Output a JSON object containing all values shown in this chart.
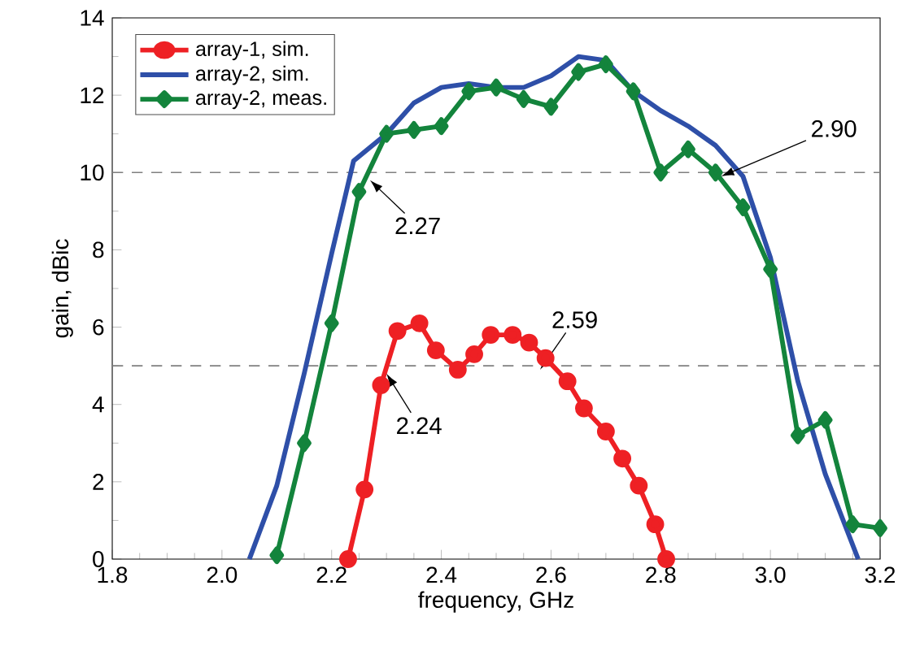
{
  "chart_data": {
    "type": "line",
    "xlabel": "frequency, GHz",
    "ylabel": "gain, dBic",
    "xlim": [
      1.8,
      3.2
    ],
    "xticks": [
      1.8,
      {
        "value": 2,
        "label": "2.0"
      },
      2.2,
      2.4,
      2.6,
      2.8,
      {
        "value": 3,
        "label": "3.0"
      },
      3.2
    ],
    "ylim": [
      0,
      14
    ],
    "yticks": [
      0,
      2,
      4,
      6,
      8,
      10,
      12,
      14
    ],
    "grid": false,
    "legend": "top left",
    "line_style": "solid",
    "series": [
      {
        "name": "array-1, sim.",
        "color": "#ee2024",
        "marker": "circle",
        "x": [
          2.23,
          2.26,
          2.29,
          2.32,
          2.36,
          2.39,
          2.43,
          2.46,
          2.49,
          2.53,
          2.56,
          2.59,
          2.63,
          2.66,
          2.7,
          2.73,
          2.76,
          2.79,
          2.81
        ],
        "values": [
          0,
          1.8,
          4.5,
          5.9,
          6.1,
          5.4,
          4.9,
          5.3,
          5.8,
          5.8,
          5.6,
          5.2,
          4.6,
          3.9,
          3.3,
          2.6,
          1.9,
          0.9,
          0
        ]
      },
      {
        "name": "array-2, sim.",
        "color": "#2e4fa8",
        "marker": "none",
        "x": [
          2.05,
          2.1,
          2.15,
          2.2,
          2.24,
          2.3,
          2.35,
          2.4,
          2.45,
          2.5,
          2.55,
          2.6,
          2.65,
          2.7,
          2.75,
          2.8,
          2.85,
          2.9,
          2.95,
          3.0,
          3.05,
          3.1,
          3.16
        ],
        "values": [
          0,
          1.9,
          4.8,
          7.9,
          10.3,
          11.0,
          11.8,
          12.2,
          12.3,
          12.2,
          12.2,
          12.5,
          13.0,
          12.9,
          12.1,
          11.6,
          11.2,
          10.7,
          9.9,
          7.8,
          4.6,
          2.2,
          0
        ]
      },
      {
        "name": "array-2, meas.",
        "color": "#13843c",
        "marker": "diamond",
        "x": [
          2.1,
          2.15,
          2.2,
          2.25,
          2.3,
          2.35,
          2.4,
          2.45,
          2.5,
          2.55,
          2.6,
          2.65,
          2.7,
          2.75,
          2.8,
          2.85,
          2.9,
          2.95,
          3.0,
          3.05,
          3.1,
          3.15,
          3.2
        ],
        "values": [
          0.1,
          3.0,
          6.1,
          9.5,
          11.0,
          11.1,
          11.2,
          12.1,
          12.2,
          11.9,
          11.7,
          12.6,
          12.8,
          12.1,
          10.0,
          10.6,
          10.0,
          9.1,
          7.5,
          3.2,
          3.6,
          0.9,
          0.8
        ]
      }
    ],
    "ref_lines": [
      {
        "axis": "y",
        "value": 10,
        "color": "#808080",
        "line_style": "dashed"
      },
      {
        "axis": "y",
        "value": 5,
        "color": "#808080",
        "line_style": "dashed"
      }
    ],
    "annotations": [
      {
        "text": "2.27",
        "x": 2.27,
        "y": 9.8
      },
      {
        "text": "2.90",
        "x": 2.91,
        "y": 9.9
      },
      {
        "text": "2.24",
        "x": 2.3,
        "y": 4.8
      },
      {
        "text": "2.59",
        "x": 2.58,
        "y": 4.9
      }
    ]
  }
}
